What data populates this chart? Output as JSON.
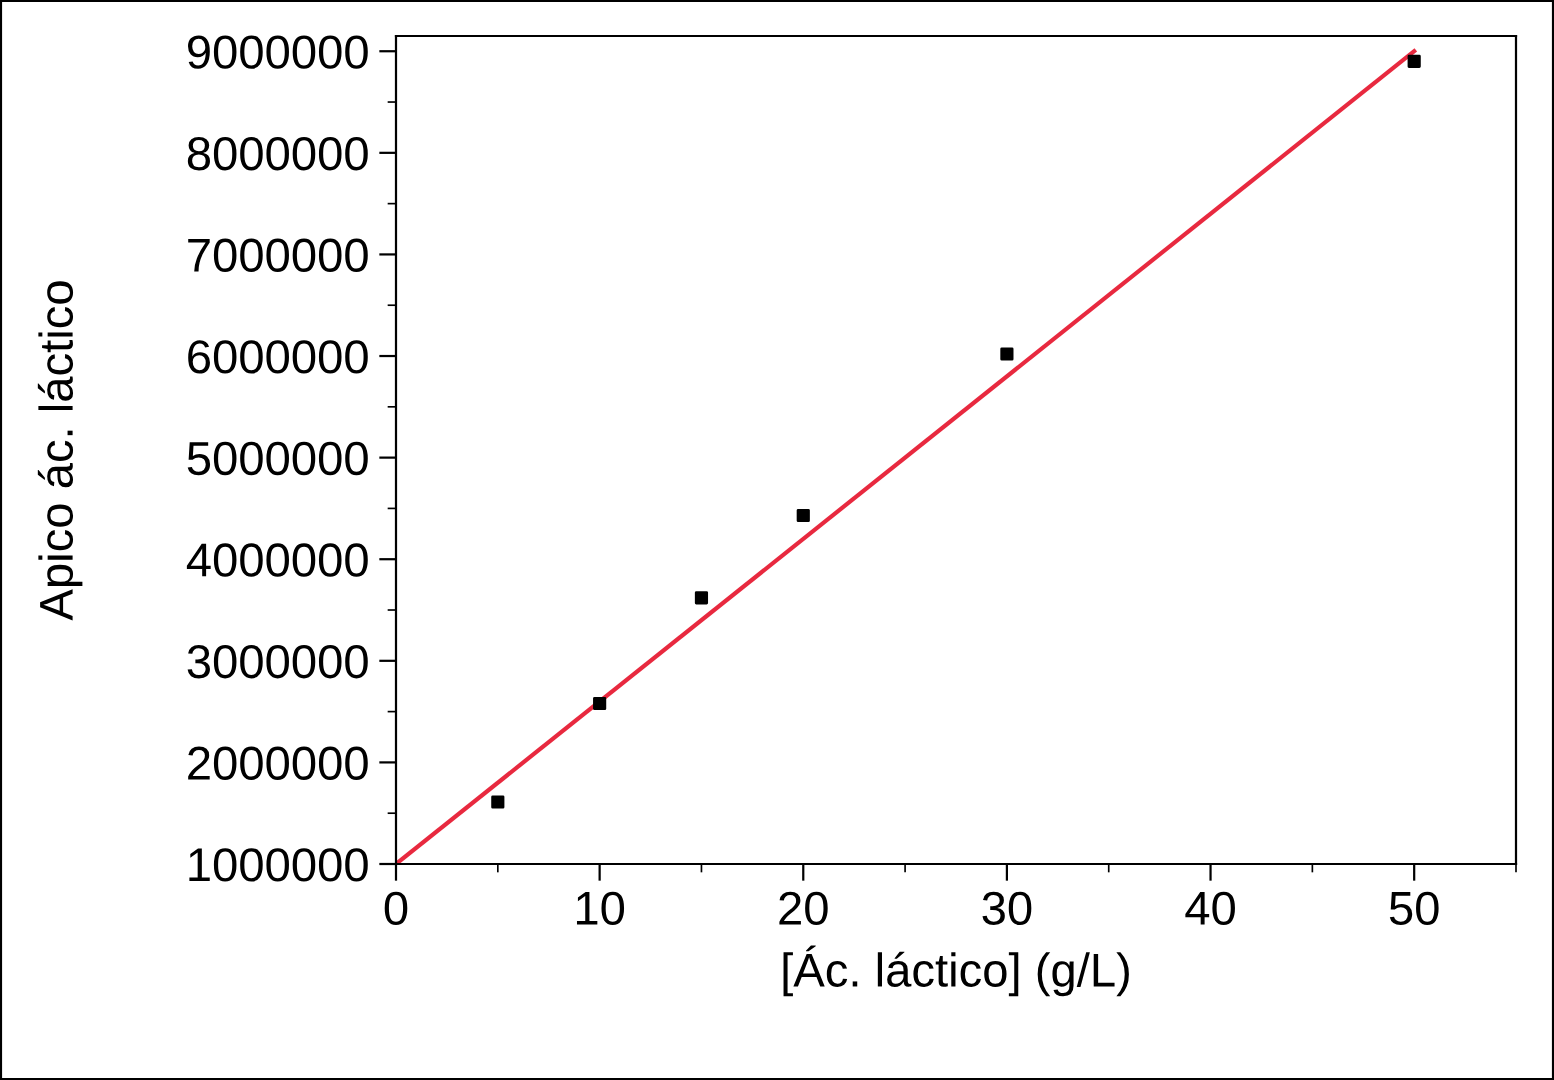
{
  "chart_data": {
    "type": "scatter",
    "xlabel": "[Ác. láctico] (g/L)",
    "ylabel": "Apico ác. láctico",
    "x": [
      5,
      10,
      15,
      20,
      30,
      50
    ],
    "series": [
      {
        "color": "#000000",
        "marker": "square",
        "values": [
          1610000,
          2580000,
          3620000,
          4430000,
          6020000,
          8900000
        ]
      },
      {
        "type": "line",
        "color": "#e8293f",
        "x": [
          0,
          50
        ],
        "values": [
          1000000,
          9000000
        ],
        "marker": "none"
      }
    ],
    "xlim": [
      0,
      55
    ],
    "ylim": [
      1000000,
      9150000
    ],
    "xticks": [
      0,
      10,
      20,
      30,
      40,
      50
    ],
    "yticks": [
      1000000,
      2000000,
      3000000,
      4000000,
      5000000,
      6000000,
      7000000,
      8000000,
      9000000
    ],
    "grid": false,
    "legend": false
  }
}
